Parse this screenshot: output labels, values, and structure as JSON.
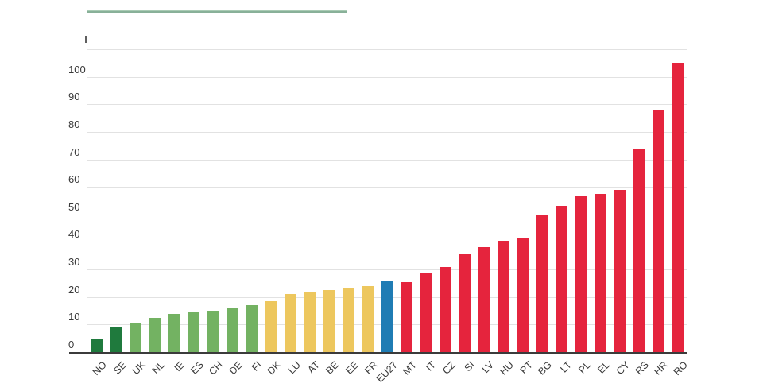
{
  "accent": {
    "color": "#7fa991",
    "color_light": "#b9d8c2"
  },
  "axis": {
    "line_color": "#3b3b3b",
    "gridline_color": "#e2e2e2",
    "tick_label_color": "#3a3a3a"
  },
  "chart_data": {
    "type": "bar",
    "title": "",
    "xlabel": "",
    "ylabel": "",
    "categories": [
      "NO",
      "SE",
      "UK",
      "NL",
      "IE",
      "ES",
      "CH",
      "DE",
      "FI",
      "DK",
      "LU",
      "AT",
      "BE",
      "EE",
      "FR",
      "EU27",
      "MT",
      "IT",
      "CZ",
      "SI",
      "LV",
      "HU",
      "PT",
      "BG",
      "LT",
      "PL",
      "EL",
      "CY",
      "RS",
      "HR",
      "RO"
    ],
    "values": [
      5,
      9,
      10.5,
      12.5,
      14,
      14.5,
      15,
      16,
      17,
      18.5,
      21,
      22,
      22.5,
      23.5,
      24,
      26,
      25.5,
      28.5,
      31,
      35.5,
      38,
      40.5,
      41.5,
      50,
      53,
      57,
      57.5,
      59,
      73.5,
      88,
      105
    ],
    "groups": [
      "darkgreen",
      "darkgreen",
      "green",
      "green",
      "green",
      "green",
      "green",
      "green",
      "green",
      "yellow",
      "yellow",
      "yellow",
      "yellow",
      "yellow",
      "yellow",
      "blue",
      "red",
      "red",
      "red",
      "red",
      "red",
      "red",
      "red",
      "red",
      "red",
      "red",
      "red",
      "red",
      "red",
      "red",
      "red"
    ],
    "group_colors": {
      "darkgreen": "#1f7a3d",
      "green": "#73b262",
      "yellow": "#edc75e",
      "blue": "#1f7cb4",
      "red": "#e5243d"
    },
    "ylim": [
      0,
      110
    ],
    "yticks": [
      0,
      10,
      20,
      30,
      40,
      50,
      60,
      70,
      80,
      90,
      100
    ],
    "grid": true,
    "legend_position": "none"
  }
}
